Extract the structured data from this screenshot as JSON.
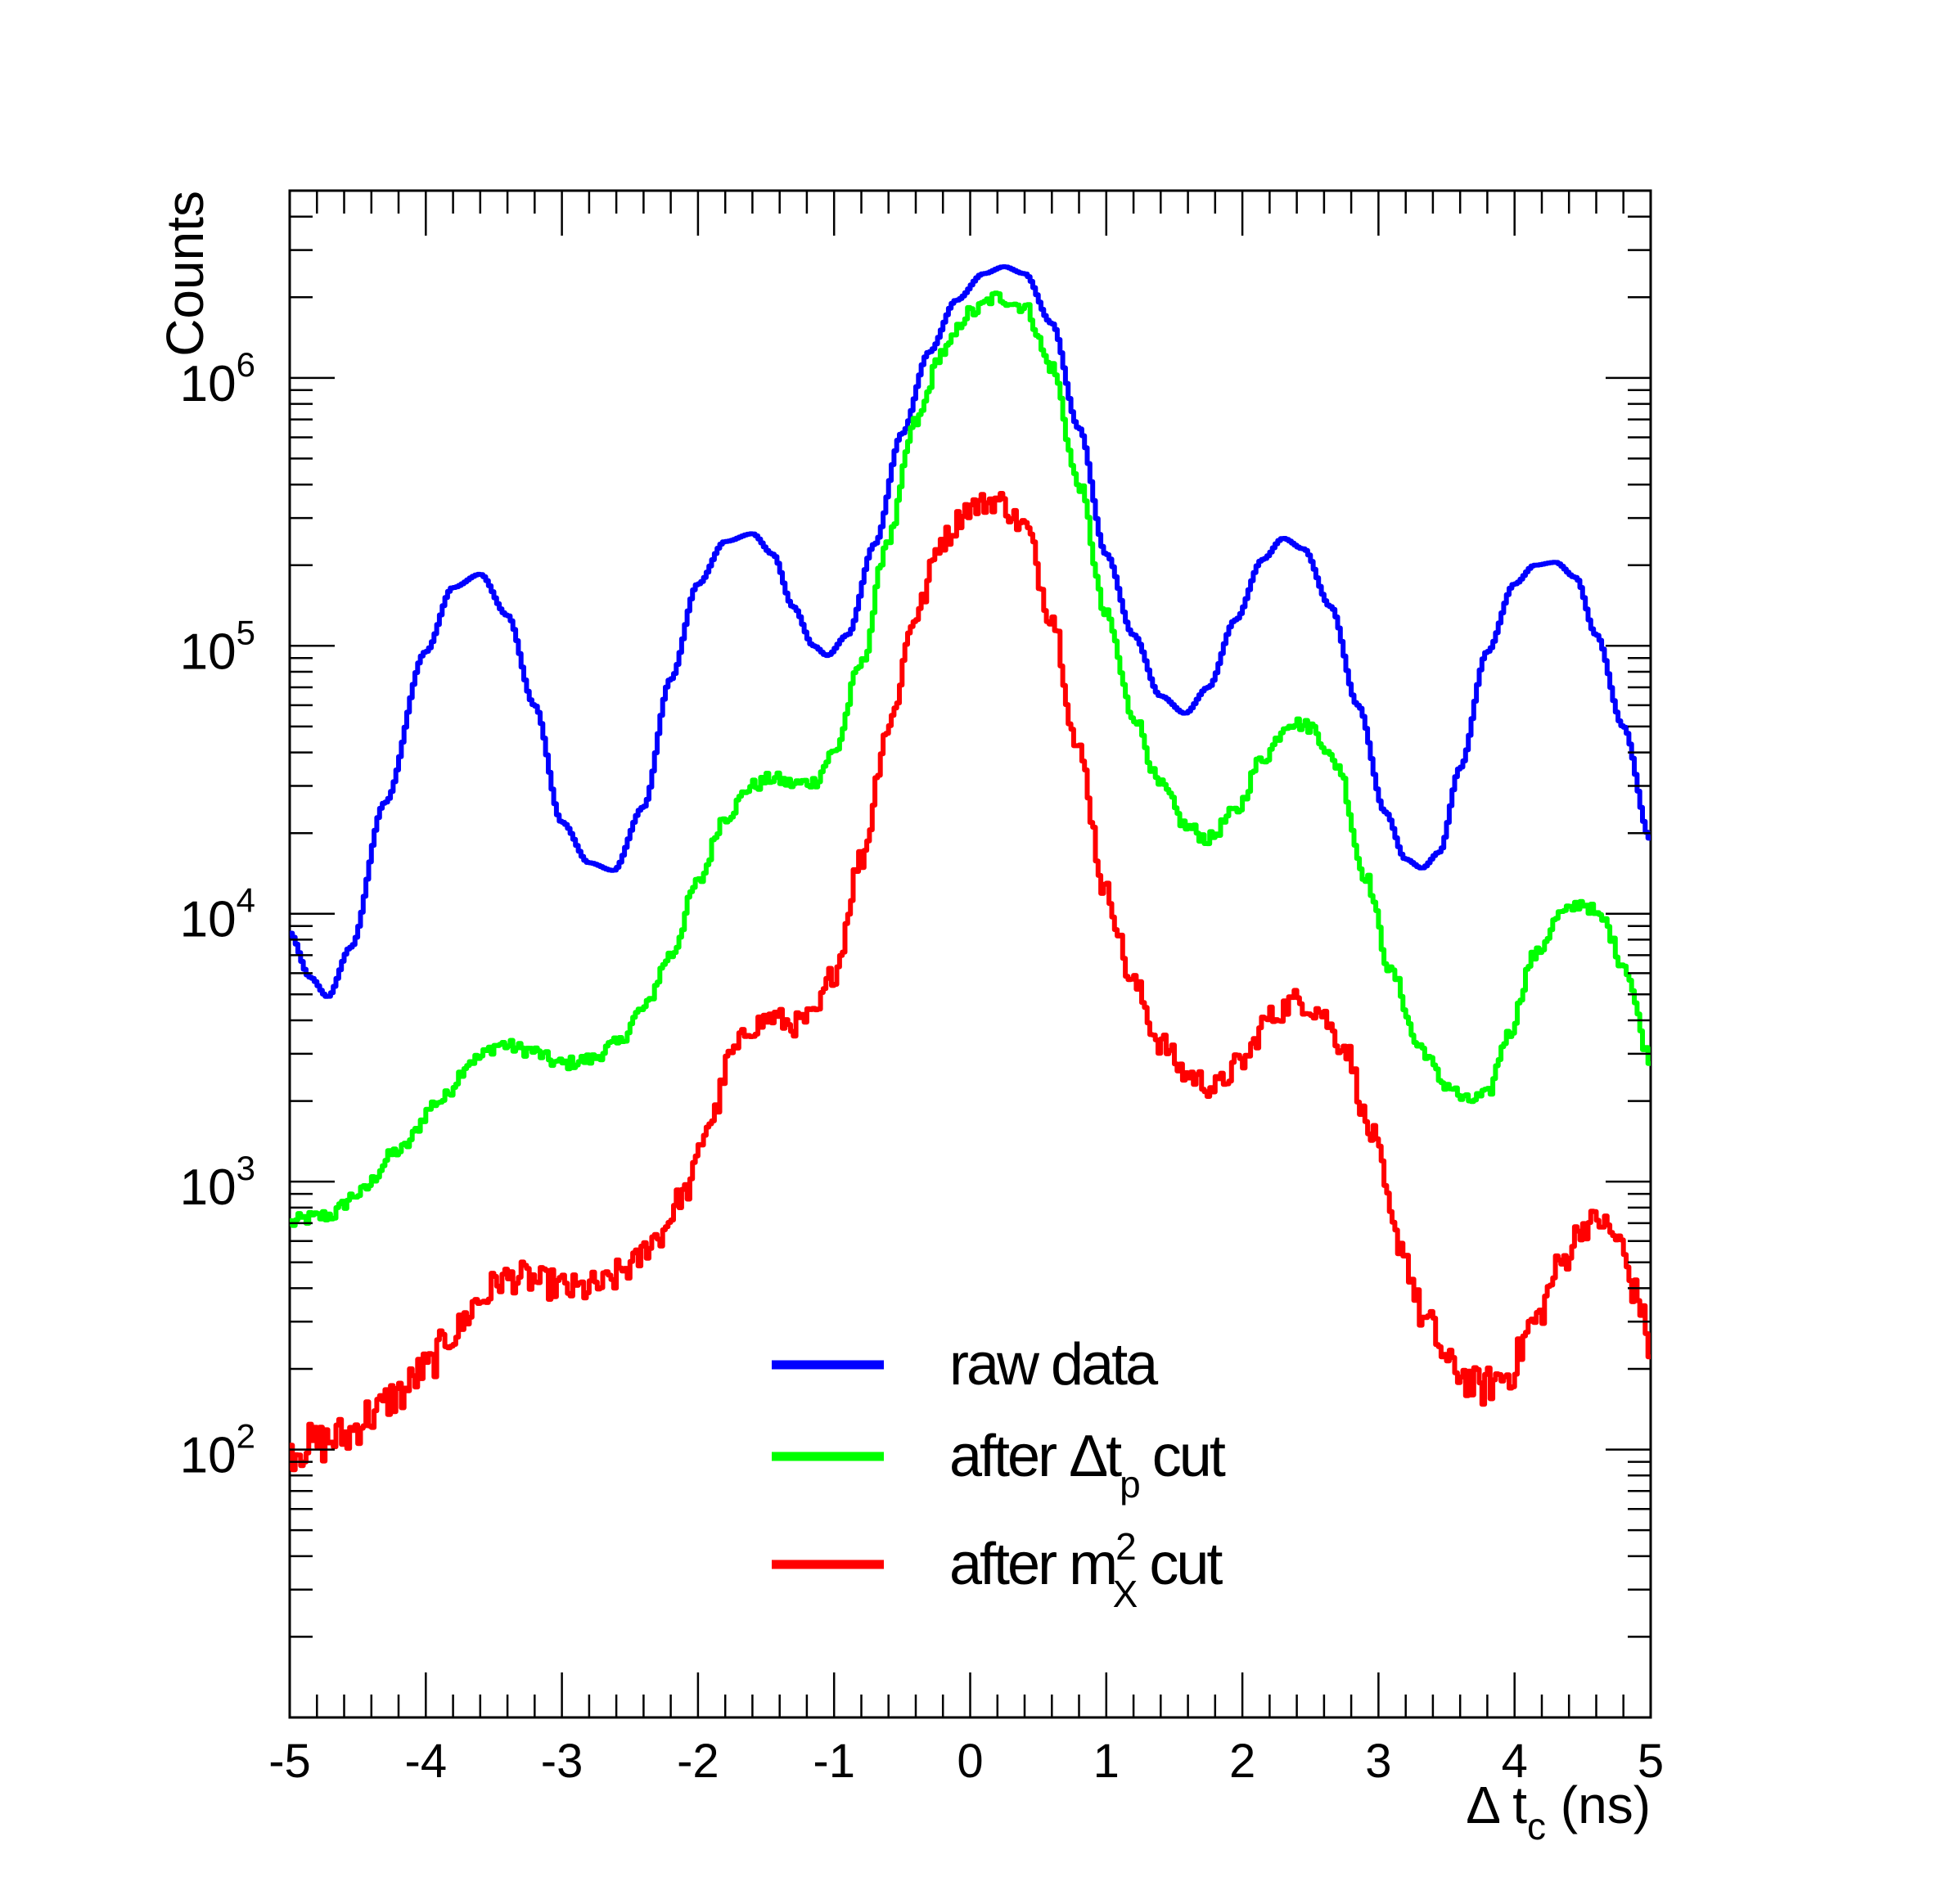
{
  "chart_data": {
    "type": "line",
    "title": "",
    "xlabel_parts": [
      "Δ t",
      "c",
      " (ns)"
    ],
    "ylabel": "Counts",
    "xlim": [
      -5,
      5
    ],
    "ylim": [
      10,
      5000000
    ],
    "yscale": "log",
    "x_ticks": [
      -5,
      -4,
      -3,
      -2,
      -1,
      0,
      1,
      2,
      3,
      4,
      5
    ],
    "x_tick_labels": [
      "-5",
      "-4",
      "-3",
      "-2",
      "-1",
      "0",
      "1",
      "2",
      "3",
      "4",
      "5"
    ],
    "y_tick_labels": [
      {
        "base": "10",
        "exp": "2",
        "value": 100
      },
      {
        "base": "10",
        "exp": "3",
        "value": 1000
      },
      {
        "base": "10",
        "exp": "4",
        "value": 10000
      },
      {
        "base": "10",
        "exp": "5",
        "value": 100000
      },
      {
        "base": "10",
        "exp": "6",
        "value": 1000000
      }
    ],
    "series": [
      {
        "name": "raw data",
        "color": "#0000ff",
        "noise": 0,
        "points": [
          [
            -5.0,
            8500
          ],
          [
            -4.85,
            5800
          ],
          [
            -4.72,
            4900
          ],
          [
            -4.55,
            7500
          ],
          [
            -4.3,
            26000
          ],
          [
            -4.0,
            95000
          ],
          [
            -3.8,
            165000
          ],
          [
            -3.6,
            185000
          ],
          [
            -3.4,
            130000
          ],
          [
            -3.2,
            60000
          ],
          [
            -3.0,
            22000
          ],
          [
            -2.8,
            15500
          ],
          [
            -2.62,
            14500
          ],
          [
            -2.4,
            25000
          ],
          [
            -2.2,
            75000
          ],
          [
            -2.0,
            170000
          ],
          [
            -1.8,
            245000
          ],
          [
            -1.6,
            262000
          ],
          [
            -1.45,
            220000
          ],
          [
            -1.3,
            140000
          ],
          [
            -1.15,
            100000
          ],
          [
            -1.05,
            92000
          ],
          [
            -0.9,
            110000
          ],
          [
            -0.7,
            240000
          ],
          [
            -0.5,
            620000
          ],
          [
            -0.3,
            1250000
          ],
          [
            -0.1,
            1950000
          ],
          [
            0.1,
            2450000
          ],
          [
            0.25,
            2600000
          ],
          [
            0.4,
            2450000
          ],
          [
            0.6,
            1600000
          ],
          [
            0.8,
            650000
          ],
          [
            1.0,
            220000
          ],
          [
            1.2,
            110000
          ],
          [
            1.4,
            65000
          ],
          [
            1.58,
            56000
          ],
          [
            1.75,
            70000
          ],
          [
            1.95,
            125000
          ],
          [
            2.15,
            210000
          ],
          [
            2.3,
            252000
          ],
          [
            2.45,
            230000
          ],
          [
            2.65,
            140000
          ],
          [
            2.85,
            60000
          ],
          [
            3.05,
            24000
          ],
          [
            3.2,
            16000
          ],
          [
            3.32,
            14800
          ],
          [
            3.45,
            17000
          ],
          [
            3.6,
            35000
          ],
          [
            3.8,
            95000
          ],
          [
            4.0,
            170000
          ],
          [
            4.15,
            200000
          ],
          [
            4.3,
            205000
          ],
          [
            4.45,
            180000
          ],
          [
            4.6,
            110000
          ],
          [
            4.8,
            50000
          ],
          [
            5.0,
            19000
          ]
        ]
      },
      {
        "name": "after Δt_p cut",
        "color": "#00ff00",
        "noise": 0.025,
        "points": [
          [
            -5.0,
            700
          ],
          [
            -4.85,
            730
          ],
          [
            -4.7,
            750
          ],
          [
            -4.5,
            900
          ],
          [
            -4.2,
            1300
          ],
          [
            -3.9,
            2000
          ],
          [
            -3.65,
            2850
          ],
          [
            -3.45,
            3250
          ],
          [
            -3.25,
            3100
          ],
          [
            -3.0,
            2750
          ],
          [
            -2.8,
            2850
          ],
          [
            -2.6,
            3250
          ],
          [
            -2.4,
            4400
          ],
          [
            -2.2,
            7000
          ],
          [
            -2.0,
            13000
          ],
          [
            -1.8,
            23000
          ],
          [
            -1.6,
            30000
          ],
          [
            -1.45,
            32000
          ],
          [
            -1.3,
            30500
          ],
          [
            -1.15,
            31000
          ],
          [
            -1.0,
            40000
          ],
          [
            -0.8,
            85000
          ],
          [
            -0.6,
            250000
          ],
          [
            -0.4,
            680000
          ],
          [
            -0.2,
            1250000
          ],
          [
            0.0,
            1750000
          ],
          [
            0.2,
            2000000
          ],
          [
            0.4,
            1850000
          ],
          [
            0.6,
            1100000
          ],
          [
            0.8,
            400000
          ],
          [
            1.0,
            130000
          ],
          [
            1.2,
            55000
          ],
          [
            1.4,
            30000
          ],
          [
            1.6,
            21000
          ],
          [
            1.75,
            19000
          ],
          [
            1.95,
            24000
          ],
          [
            2.15,
            38000
          ],
          [
            2.35,
            52000
          ],
          [
            2.5,
            50000
          ],
          [
            2.7,
            36000
          ],
          [
            2.9,
            14000
          ],
          [
            3.1,
            6000
          ],
          [
            3.3,
            3200
          ],
          [
            3.5,
            2300
          ],
          [
            3.65,
            2000
          ],
          [
            3.8,
            2100
          ],
          [
            3.95,
            3500
          ],
          [
            4.15,
            7000
          ],
          [
            4.35,
            10000
          ],
          [
            4.5,
            11000
          ],
          [
            4.65,
            9500
          ],
          [
            4.8,
            6500
          ],
          [
            5.0,
            2900
          ]
        ]
      },
      {
        "name": "after m²_X cut",
        "color": "#ff0000",
        "noise": 0.045,
        "points": [
          [
            -5.0,
            100
          ],
          [
            -4.8,
            105
          ],
          [
            -4.6,
            112
          ],
          [
            -4.4,
            135
          ],
          [
            -4.2,
            160
          ],
          [
            -4.0,
            200
          ],
          [
            -3.8,
            270
          ],
          [
            -3.6,
            360
          ],
          [
            -3.45,
            430
          ],
          [
            -3.3,
            440
          ],
          [
            -3.1,
            415
          ],
          [
            -2.9,
            395
          ],
          [
            -2.7,
            410
          ],
          [
            -2.5,
            480
          ],
          [
            -2.3,
            620
          ],
          [
            -2.1,
            900
          ],
          [
            -1.9,
            1700
          ],
          [
            -1.75,
            3000
          ],
          [
            -1.6,
            3800
          ],
          [
            -1.45,
            4100
          ],
          [
            -1.3,
            3850
          ],
          [
            -1.15,
            4100
          ],
          [
            -1.0,
            6000
          ],
          [
            -0.8,
            16000
          ],
          [
            -0.6,
            50000
          ],
          [
            -0.4,
            130000
          ],
          [
            -0.2,
            250000
          ],
          [
            0.0,
            330000
          ],
          [
            0.2,
            350000
          ],
          [
            0.4,
            280000
          ],
          [
            0.6,
            130000
          ],
          [
            0.8,
            40000
          ],
          [
            1.0,
            12000
          ],
          [
            1.2,
            5500
          ],
          [
            1.4,
            3300
          ],
          [
            1.6,
            2500
          ],
          [
            1.8,
            2250
          ],
          [
            2.0,
            2800
          ],
          [
            2.2,
            4100
          ],
          [
            2.4,
            4750
          ],
          [
            2.55,
            4400
          ],
          [
            2.75,
            3200
          ],
          [
            2.95,
            1500
          ],
          [
            3.15,
            600
          ],
          [
            3.35,
            300
          ],
          [
            3.55,
            200
          ],
          [
            3.75,
            170
          ],
          [
            3.95,
            190
          ],
          [
            4.15,
            300
          ],
          [
            4.35,
            500
          ],
          [
            4.5,
            680
          ],
          [
            4.62,
            720
          ],
          [
            4.75,
            620
          ],
          [
            4.9,
            380
          ],
          [
            5.0,
            240
          ]
        ]
      }
    ],
    "legend": {
      "position": "bottom-center",
      "entries": [
        {
          "color": "#0000ff",
          "text": "raw data"
        },
        {
          "color": "#00ff00",
          "text": "after Δt",
          "sub": "p",
          "tail": " cut"
        },
        {
          "color": "#ff0000",
          "text": "after m",
          "sup": "2",
          "sub": "X",
          "tail": " cut"
        }
      ]
    }
  }
}
